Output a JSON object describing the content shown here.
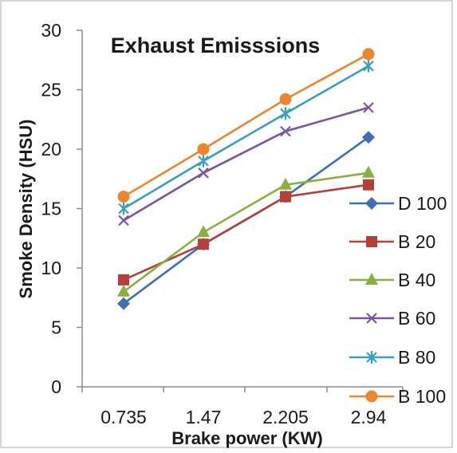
{
  "chart_data": {
    "type": "line",
    "title": "Exhaust Emisssions",
    "xlabel": "Brake power (KW)",
    "ylabel": "Smoke Density (HSU)",
    "categories": [
      "0.735",
      "1.47",
      "2.205",
      "2.94"
    ],
    "ylim": [
      0,
      30
    ],
    "yticks": [
      0,
      5,
      10,
      15,
      20,
      25,
      30
    ],
    "grid": false,
    "legend_position": "right",
    "series": [
      {
        "name": "D 100",
        "values": [
          7,
          12,
          16,
          21
        ],
        "color": "#3f6fb6",
        "marker": "diamond"
      },
      {
        "name": "B 20",
        "values": [
          9,
          12,
          16,
          17
        ],
        "color": "#b2413c",
        "marker": "square"
      },
      {
        "name": "B 40",
        "values": [
          8,
          13,
          17,
          18
        ],
        "color": "#8aaf43",
        "marker": "triangle"
      },
      {
        "name": "B 60",
        "values": [
          14,
          18,
          21.5,
          23.5
        ],
        "color": "#7a56a0",
        "marker": "x"
      },
      {
        "name": "B 80",
        "values": [
          15,
          19,
          23,
          27
        ],
        "color": "#3a9fbe",
        "marker": "star"
      },
      {
        "name": "B 100",
        "values": [
          16,
          20,
          24.2,
          28
        ],
        "color": "#ea8732",
        "marker": "circle"
      }
    ]
  }
}
